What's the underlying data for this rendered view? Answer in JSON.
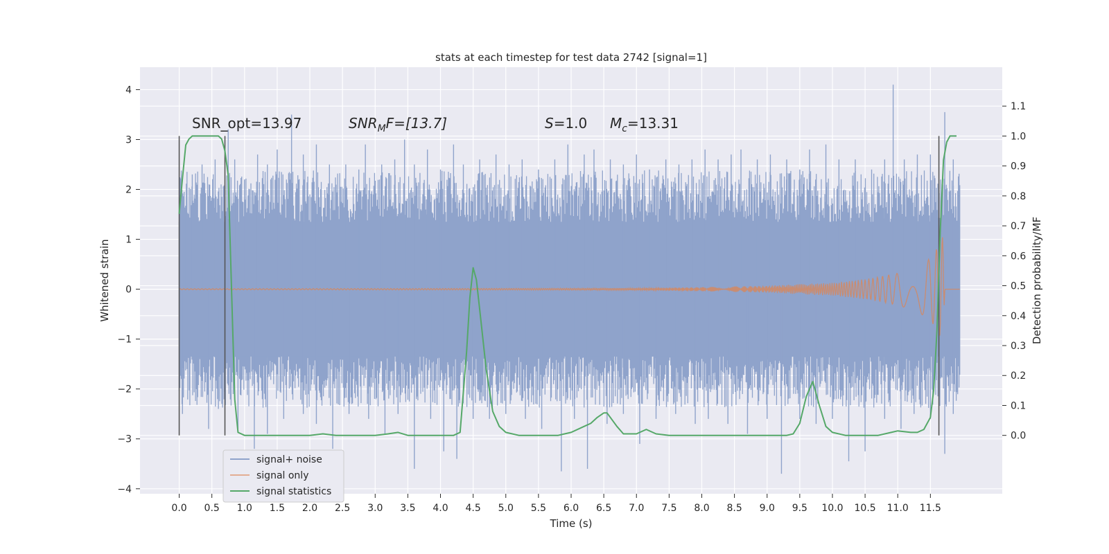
{
  "chart_data": {
    "type": "line",
    "title": "stats at each timestep for test data 2742 [signal=1]",
    "xlabel": "Time (s)",
    "ylabel_left": "Whitened strain",
    "ylabel_right": "Detection probability/MF",
    "xlim": [
      -0.6,
      12.6
    ],
    "ylim_left": [
      -4.1,
      4.45
    ],
    "ylim_right": [
      -0.195,
      1.23
    ],
    "grid": true,
    "legend_position": "lower-left",
    "x_ticks": [
      0.0,
      0.5,
      1.0,
      1.5,
      2.0,
      2.5,
      3.0,
      3.5,
      4.0,
      4.5,
      5.0,
      5.5,
      6.0,
      6.5,
      7.0,
      7.5,
      8.0,
      8.5,
      9.0,
      9.5,
      10.0,
      10.5,
      11.0,
      11.5
    ],
    "x_tick_labels": [
      "0.0",
      "0.5",
      "1.0",
      "1.5",
      "2.0",
      "2.5",
      "3.0",
      "3.5",
      "4.0",
      "4.5",
      "5.0",
      "5.5",
      "6.0",
      "6.5",
      "7.0",
      "7.5",
      "8.0",
      "8.5",
      "9.0",
      "9.5",
      "10.0",
      "10.5",
      "11.0",
      "11.5"
    ],
    "y_left_ticks": [
      4,
      3,
      2,
      1,
      0,
      -1,
      -2,
      -3,
      -4
    ],
    "y_left_tick_labels": [
      "4",
      "3",
      "2",
      "1",
      "0",
      "−1",
      "−2",
      "−3",
      "−4"
    ],
    "y_right_ticks": [
      1.1,
      1.0,
      0.9,
      0.8,
      0.7,
      0.6,
      0.5,
      0.4,
      0.3,
      0.2,
      0.1,
      0.0
    ],
    "y_right_tick_labels": [
      "1.1",
      "1.0",
      "0.9",
      "0.8",
      "0.7",
      "0.6",
      "0.5",
      "0.4",
      "0.3",
      "0.2",
      "0.1",
      "0.0"
    ],
    "annotations": {
      "snr_opt": "SNR_opt=13.97",
      "snr_mf_prefix": "SNR",
      "snr_mf_sub": "M",
      "snr_mf_rest": "F=[13.7]",
      "s_var": "S",
      "s_rest": "=1.0",
      "mc_var": "M",
      "mc_sub": "c",
      "mc_rest": "=13.31"
    },
    "vertical_markers_x": [
      0.0,
      0.7,
      11.63
    ],
    "series": [
      {
        "name": "signal+ noise",
        "color": "#8fa3cb",
        "axis": "left",
        "x_range": [
          0.0,
          11.95
        ],
        "envelope_typical": 1.4,
        "spikes": [
          {
            "x": 0.1,
            "y": 1.6
          },
          {
            "x": 0.2,
            "y": 2.3
          },
          {
            "x": 0.35,
            "y": 2.5
          },
          {
            "x": 0.55,
            "y": 2.6
          },
          {
            "x": 0.75,
            "y": 3.2
          },
          {
            "x": 0.85,
            "y": 2.6
          },
          {
            "x": 1.0,
            "y": 2.2
          },
          {
            "x": 1.2,
            "y": 2.7
          },
          {
            "x": 1.35,
            "y": 2.5
          },
          {
            "x": 1.5,
            "y": 2.8
          },
          {
            "x": 1.72,
            "y": 3.5
          },
          {
            "x": 1.9,
            "y": 2.7
          },
          {
            "x": 2.1,
            "y": 2.9
          },
          {
            "x": 2.3,
            "y": 2.5
          },
          {
            "x": 2.55,
            "y": 2.5
          },
          {
            "x": 2.75,
            "y": 2.4
          },
          {
            "x": 2.85,
            "y": 2.9
          },
          {
            "x": 3.1,
            "y": 2.5
          },
          {
            "x": 3.3,
            "y": 2.6
          },
          {
            "x": 3.45,
            "y": 3.0
          },
          {
            "x": 3.6,
            "y": 2.5
          },
          {
            "x": 3.8,
            "y": 2.8
          },
          {
            "x": 4.0,
            "y": 2.4
          },
          {
            "x": 4.2,
            "y": 2.9
          },
          {
            "x": 4.35,
            "y": 2.5
          },
          {
            "x": 4.6,
            "y": 2.6
          },
          {
            "x": 4.85,
            "y": 2.7
          },
          {
            "x": 5.05,
            "y": 2.5
          },
          {
            "x": 5.25,
            "y": 2.6
          },
          {
            "x": 5.5,
            "y": 2.4
          },
          {
            "x": 5.75,
            "y": 2.6
          },
          {
            "x": 5.95,
            "y": 2.9
          },
          {
            "x": 6.2,
            "y": 2.7
          },
          {
            "x": 6.35,
            "y": 2.8
          },
          {
            "x": 6.6,
            "y": 2.6
          },
          {
            "x": 6.8,
            "y": 2.5
          },
          {
            "x": 7.0,
            "y": 2.7
          },
          {
            "x": 7.2,
            "y": 2.4
          },
          {
            "x": 7.45,
            "y": 2.6
          },
          {
            "x": 7.65,
            "y": 2.5
          },
          {
            "x": 7.85,
            "y": 2.6
          },
          {
            "x": 8.05,
            "y": 2.8
          },
          {
            "x": 8.25,
            "y": 2.6
          },
          {
            "x": 8.45,
            "y": 2.7
          },
          {
            "x": 8.6,
            "y": 2.8
          },
          {
            "x": 8.85,
            "y": 2.6
          },
          {
            "x": 9.05,
            "y": 2.7
          },
          {
            "x": 9.3,
            "y": 2.6
          },
          {
            "x": 9.5,
            "y": 2.4
          },
          {
            "x": 9.65,
            "y": 2.8
          },
          {
            "x": 9.9,
            "y": 2.9
          },
          {
            "x": 10.1,
            "y": 2.6
          },
          {
            "x": 10.35,
            "y": 2.6
          },
          {
            "x": 10.6,
            "y": 2.4
          },
          {
            "x": 10.8,
            "y": 2.6
          },
          {
            "x": 10.93,
            "y": 4.1
          },
          {
            "x": 11.1,
            "y": 2.6
          },
          {
            "x": 11.3,
            "y": 2.7
          },
          {
            "x": 11.5,
            "y": 2.7
          },
          {
            "x": 11.72,
            "y": 3.55
          },
          {
            "x": 11.85,
            "y": 2.6
          },
          {
            "x": 0.05,
            "y": -2.5
          },
          {
            "x": 0.45,
            "y": -2.8
          },
          {
            "x": 0.6,
            "y": -2.4
          },
          {
            "x": 0.9,
            "y": -2.8
          },
          {
            "x": 1.15,
            "y": -3.2
          },
          {
            "x": 1.35,
            "y": -2.9
          },
          {
            "x": 1.6,
            "y": -2.6
          },
          {
            "x": 1.9,
            "y": -2.5
          },
          {
            "x": 2.1,
            "y": -2.7
          },
          {
            "x": 2.35,
            "y": -3.2
          },
          {
            "x": 2.6,
            "y": -2.5
          },
          {
            "x": 2.9,
            "y": -2.6
          },
          {
            "x": 3.15,
            "y": -2.9
          },
          {
            "x": 3.35,
            "y": -2.5
          },
          {
            "x": 3.6,
            "y": -3.6
          },
          {
            "x": 3.85,
            "y": -2.6
          },
          {
            "x": 4.05,
            "y": -3.25
          },
          {
            "x": 4.25,
            "y": -3.4
          },
          {
            "x": 4.5,
            "y": -2.6
          },
          {
            "x": 4.75,
            "y": -2.6
          },
          {
            "x": 5.0,
            "y": -2.5
          },
          {
            "x": 5.3,
            "y": -2.6
          },
          {
            "x": 5.55,
            "y": -2.8
          },
          {
            "x": 5.85,
            "y": -3.65
          },
          {
            "x": 6.05,
            "y": -2.6
          },
          {
            "x": 6.25,
            "y": -3.6
          },
          {
            "x": 6.55,
            "y": -2.7
          },
          {
            "x": 6.8,
            "y": -2.5
          },
          {
            "x": 7.05,
            "y": -3.1
          },
          {
            "x": 7.3,
            "y": -2.6
          },
          {
            "x": 7.6,
            "y": -2.5
          },
          {
            "x": 7.9,
            "y": -2.7
          },
          {
            "x": 8.1,
            "y": -2.6
          },
          {
            "x": 8.4,
            "y": -2.7
          },
          {
            "x": 8.7,
            "y": -2.9
          },
          {
            "x": 9.0,
            "y": -2.6
          },
          {
            "x": 9.22,
            "y": -3.7
          },
          {
            "x": 9.5,
            "y": -2.6
          },
          {
            "x": 9.75,
            "y": -2.7
          },
          {
            "x": 10.0,
            "y": -2.6
          },
          {
            "x": 10.25,
            "y": -3.45
          },
          {
            "x": 10.5,
            "y": -3.25
          },
          {
            "x": 10.8,
            "y": -2.6
          },
          {
            "x": 11.05,
            "y": -2.8
          },
          {
            "x": 11.25,
            "y": -2.5
          },
          {
            "x": 11.5,
            "y": -2.6
          },
          {
            "x": 11.72,
            "y": -3.3
          },
          {
            "x": 11.85,
            "y": -2.5
          }
        ]
      },
      {
        "name": "signal only",
        "color": "#dd8452",
        "axis": "left",
        "x_range": [
          0.0,
          11.95
        ],
        "amplitude_points": [
          [
            0.0,
            0.01
          ],
          [
            7.0,
            0.02
          ],
          [
            8.0,
            0.04
          ],
          [
            9.0,
            0.07
          ],
          [
            10.0,
            0.13
          ],
          [
            10.5,
            0.2
          ],
          [
            11.0,
            0.32
          ],
          [
            11.3,
            0.45
          ],
          [
            11.5,
            0.62
          ],
          [
            11.6,
            0.82
          ],
          [
            11.7,
            1.1
          ],
          [
            11.72,
            0.0
          ]
        ]
      },
      {
        "name": "signal statistics",
        "color": "#55a868",
        "axis": "right",
        "x": [
          0.0,
          0.05,
          0.1,
          0.15,
          0.2,
          0.3,
          0.4,
          0.5,
          0.6,
          0.65,
          0.7,
          0.75,
          0.8,
          0.85,
          0.9,
          1.0,
          1.2,
          1.5,
          2.0,
          2.2,
          2.4,
          3.0,
          3.2,
          3.35,
          3.5,
          3.8,
          4.0,
          4.2,
          4.3,
          4.4,
          4.45,
          4.5,
          4.55,
          4.6,
          4.7,
          4.8,
          4.9,
          5.0,
          5.2,
          5.5,
          5.8,
          5.9,
          6.0,
          6.2,
          6.3,
          6.4,
          6.5,
          6.55,
          6.7,
          6.8,
          7.0,
          7.15,
          7.3,
          7.5,
          8.0,
          8.5,
          9.0,
          9.3,
          9.4,
          9.5,
          9.6,
          9.7,
          9.8,
          9.9,
          10.0,
          10.2,
          10.5,
          10.7,
          10.9,
          11.0,
          11.2,
          11.3,
          11.4,
          11.5,
          11.55,
          11.6,
          11.65,
          11.7,
          11.75,
          11.8,
          11.9
        ],
        "y": [
          0.74,
          0.86,
          0.97,
          0.99,
          1.0,
          1.0,
          1.0,
          1.0,
          1.0,
          0.99,
          0.95,
          0.87,
          0.5,
          0.12,
          0.01,
          0.0,
          0.0,
          0.0,
          0.0,
          0.005,
          0.0,
          0.0,
          0.005,
          0.01,
          0.0,
          0.0,
          0.0,
          0.0,
          0.01,
          0.28,
          0.46,
          0.56,
          0.52,
          0.42,
          0.22,
          0.08,
          0.03,
          0.01,
          0.0,
          0.0,
          0.0,
          0.005,
          0.01,
          0.03,
          0.04,
          0.06,
          0.075,
          0.075,
          0.03,
          0.005,
          0.005,
          0.02,
          0.005,
          0.0,
          0.0,
          0.0,
          0.0,
          0.0,
          0.005,
          0.04,
          0.13,
          0.18,
          0.1,
          0.03,
          0.01,
          0.0,
          0.0,
          0.0,
          0.01,
          0.015,
          0.01,
          0.01,
          0.02,
          0.06,
          0.15,
          0.35,
          0.68,
          0.92,
          0.98,
          1.0,
          1.0
        ]
      }
    ]
  }
}
